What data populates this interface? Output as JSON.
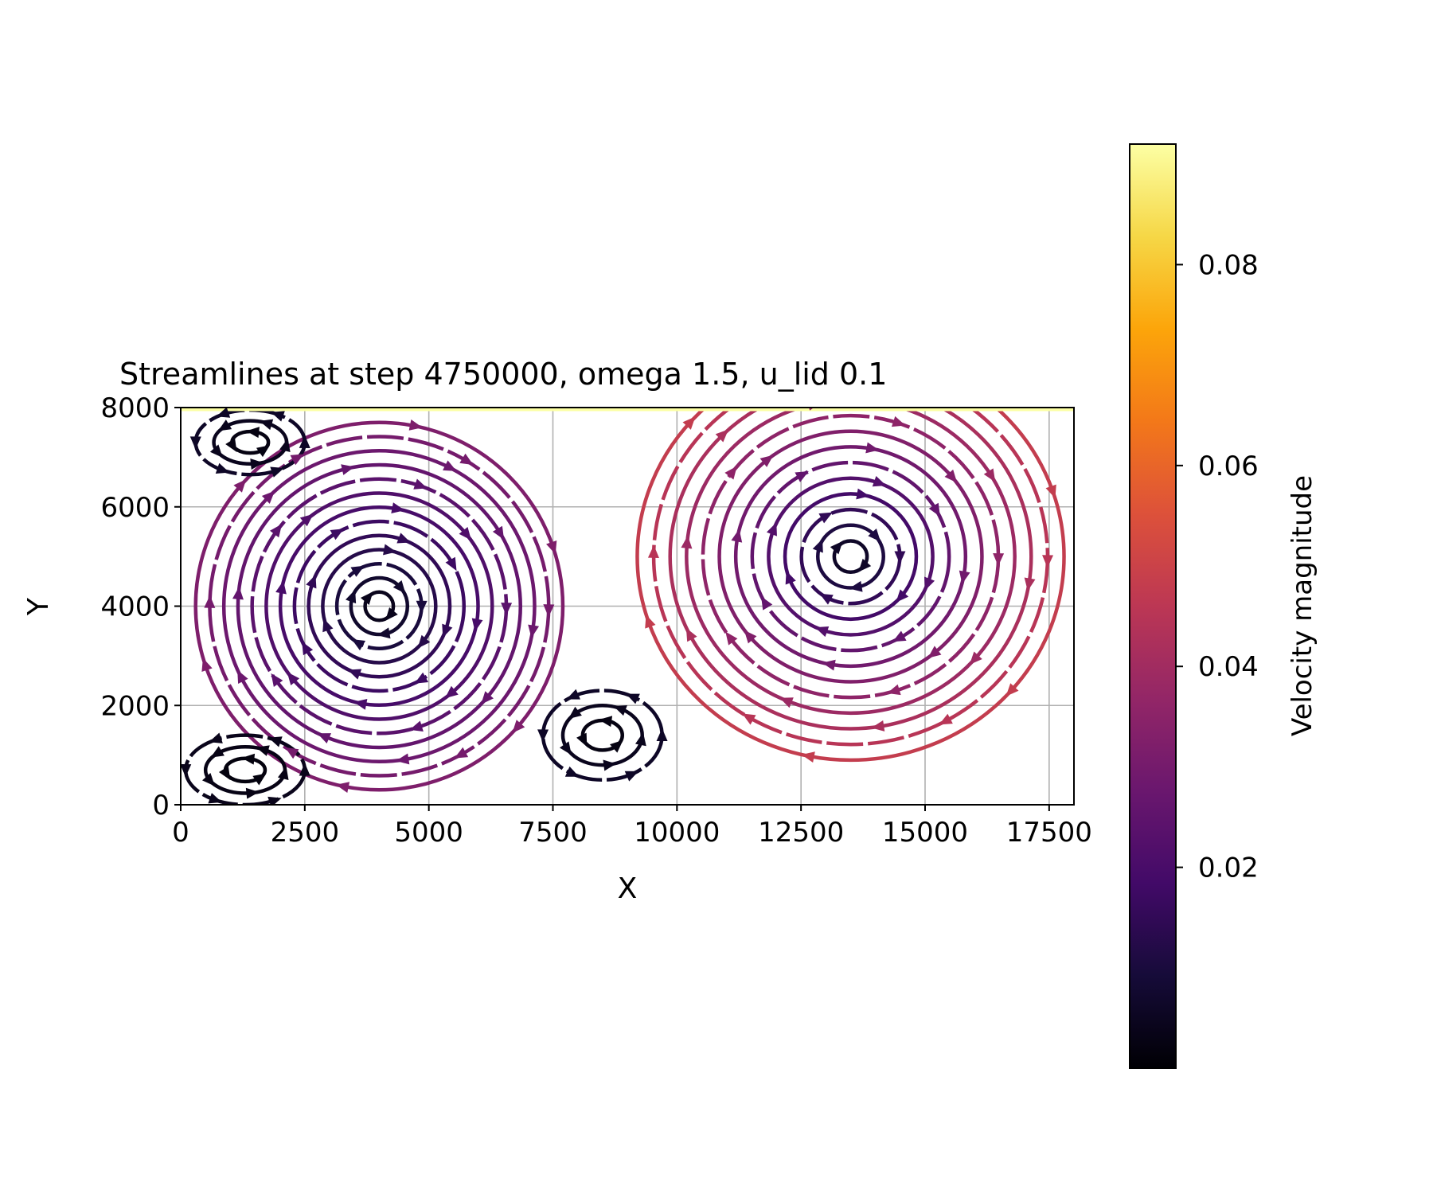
{
  "chart_data": {
    "type": "streamplot",
    "title": "Streamlines at step 4750000, omega 1.5, u_lid 0.1",
    "xlabel": "X",
    "ylabel": "Y",
    "xlim": [
      0,
      18000
    ],
    "ylim": [
      0,
      8000
    ],
    "xticks": [
      0,
      2500,
      5000,
      7500,
      10000,
      12500,
      15000,
      17500
    ],
    "yticks": [
      0,
      2000,
      4000,
      6000,
      8000
    ],
    "grid": true,
    "colorbar": {
      "label": "Velocity magnitude",
      "range": [
        0.0,
        0.092
      ],
      "ticks": [
        0.02,
        0.04,
        0.06,
        0.08
      ],
      "colormap": "inferno"
    },
    "vortices": [
      {
        "x": 4000,
        "y": 4000,
        "rx": 3700,
        "ry": 3700,
        "direction": "clockwise",
        "vmax": 0.032,
        "rings": 13
      },
      {
        "x": 13500,
        "y": 5000,
        "rx": 4300,
        "ry": 4100,
        "direction": "clockwise",
        "vmax": 0.048,
        "rings": 13
      },
      {
        "x": 1400,
        "y": 7300,
        "rx": 1100,
        "ry": 650,
        "direction": "counterclockwise",
        "vmax": 0.006,
        "rings": 3
      },
      {
        "x": 8500,
        "y": 1400,
        "rx": 1200,
        "ry": 900,
        "direction": "counterclockwise",
        "vmax": 0.006,
        "rings": 3
      },
      {
        "x": 1300,
        "y": 700,
        "rx": 1200,
        "ry": 700,
        "direction": "counterclockwise",
        "vmax": 0.004,
        "rings": 3
      }
    ],
    "lid": {
      "y": 8000,
      "speed": 0.092
    }
  }
}
